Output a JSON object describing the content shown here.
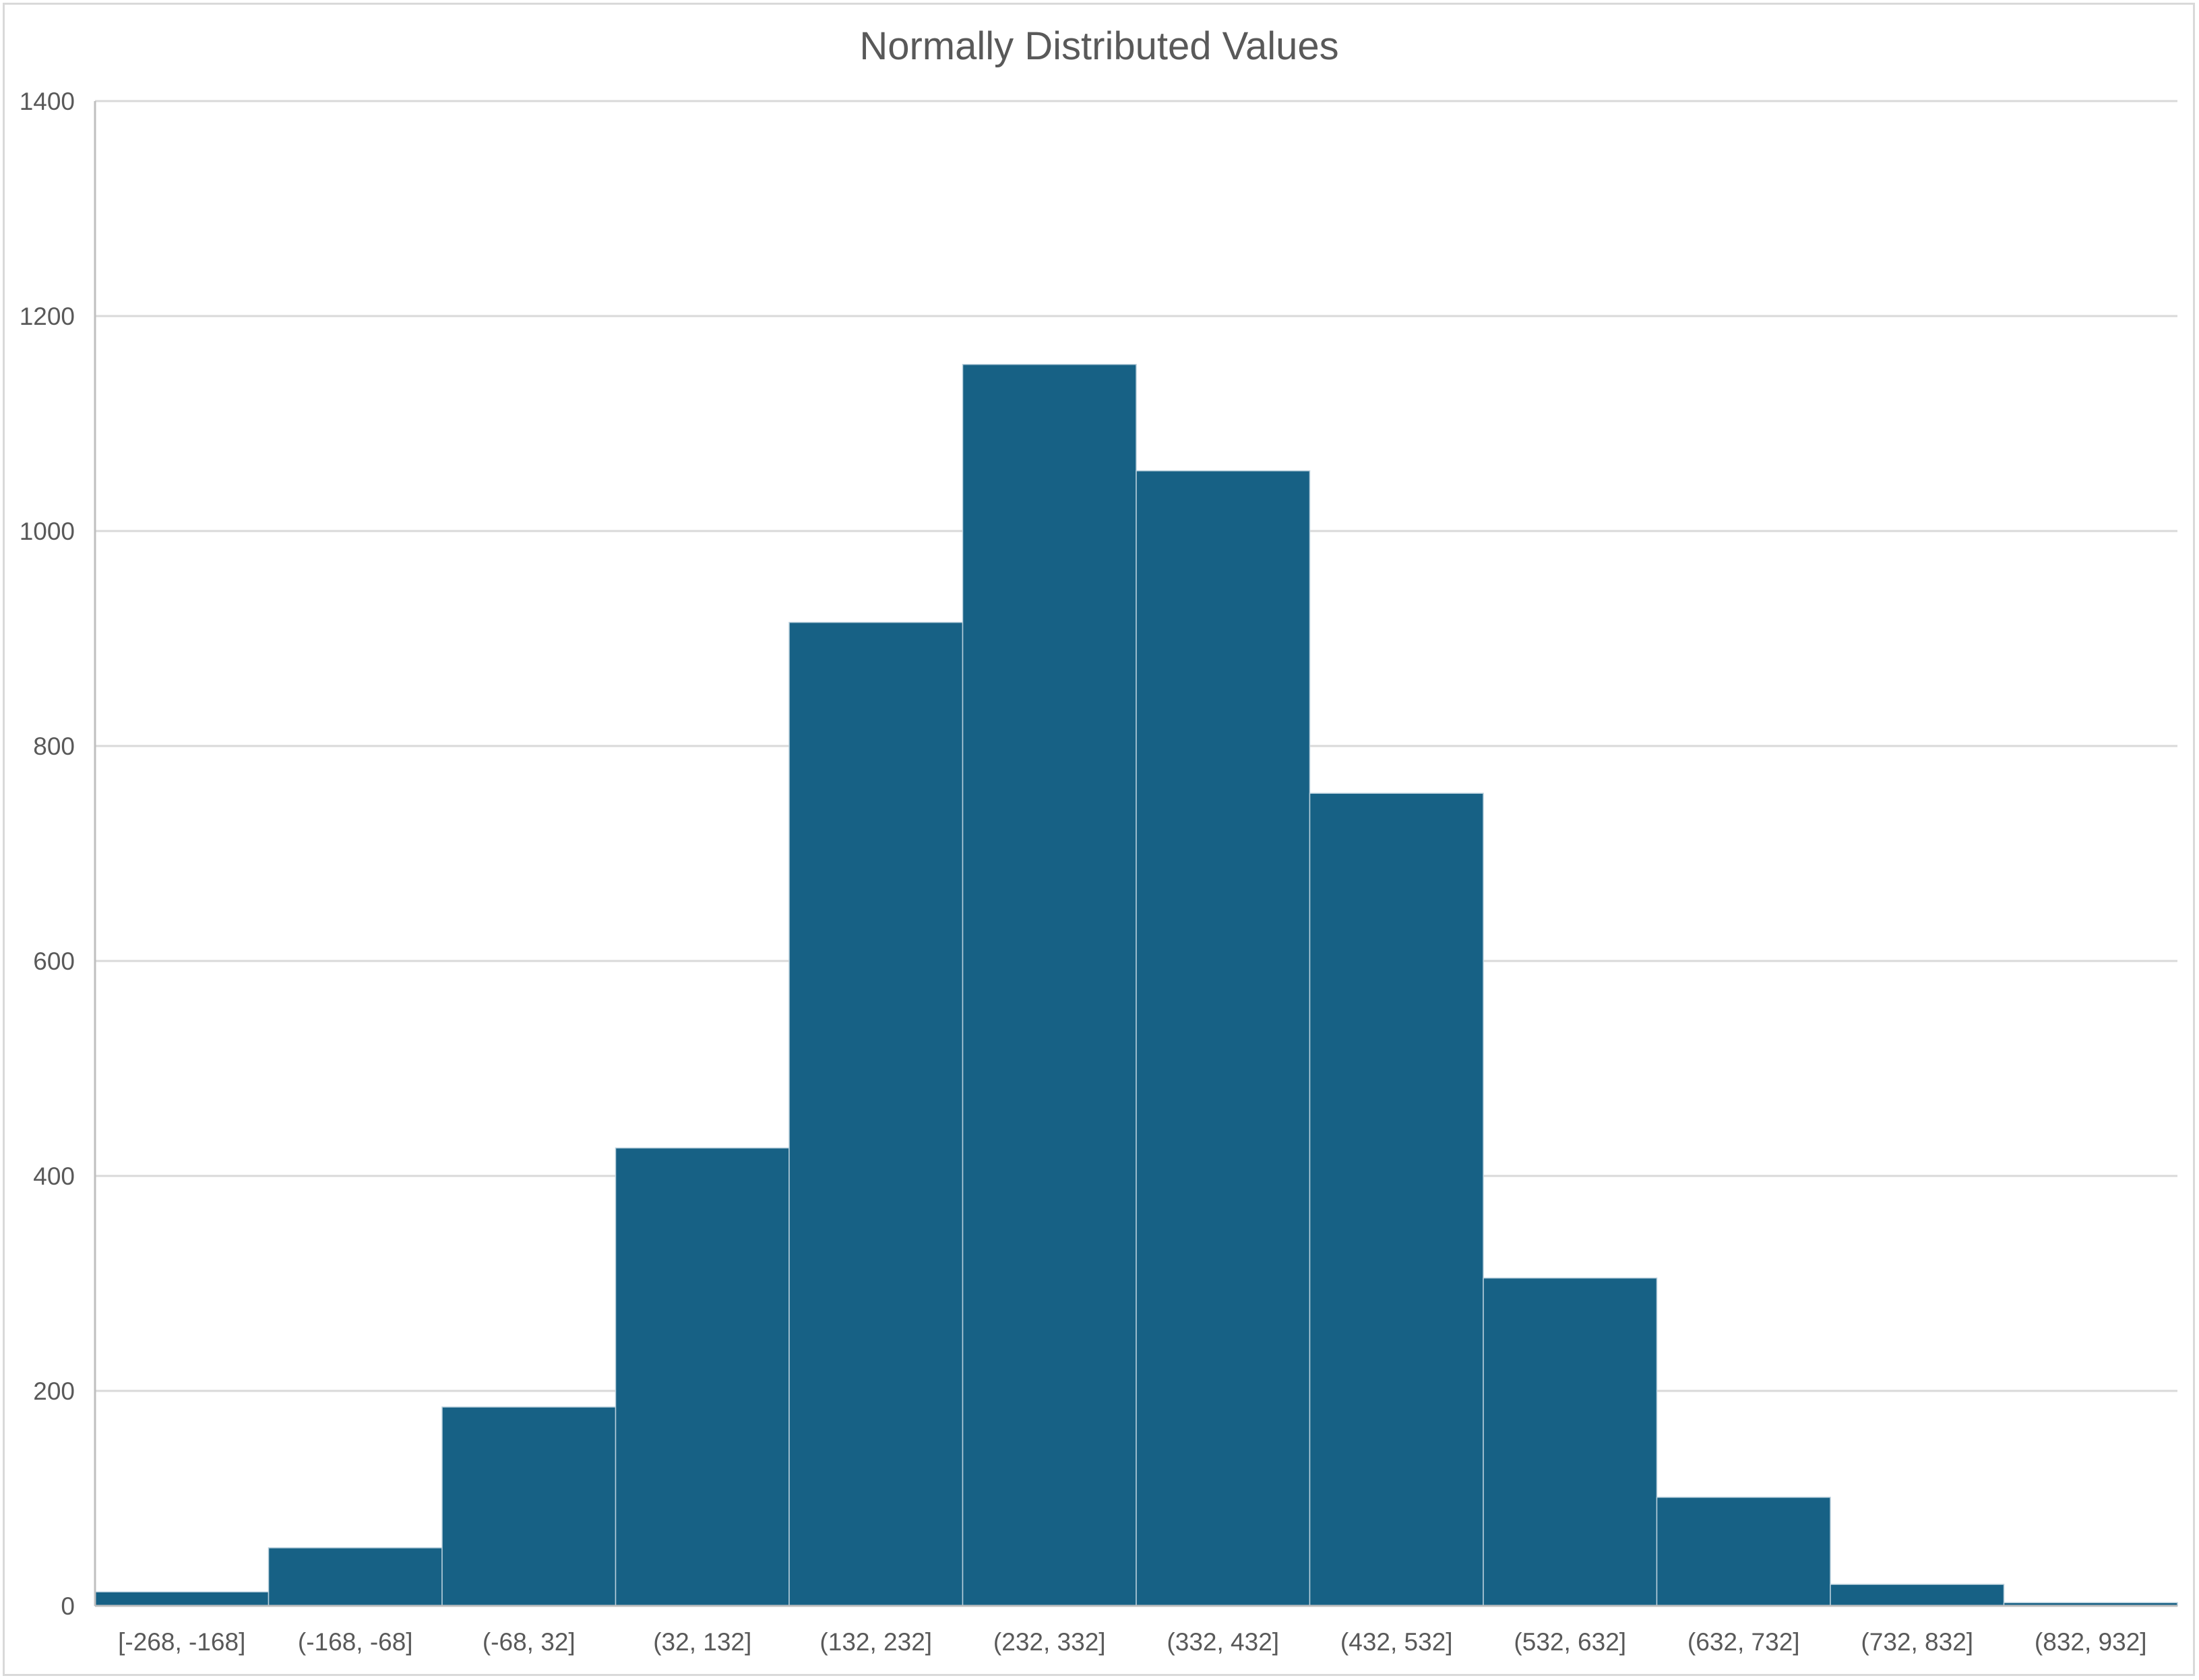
{
  "chart_data": {
    "type": "bar",
    "title": "Normally  Distributed Values",
    "xlabel": "",
    "ylabel": "",
    "categories": [
      "[-268, -168]",
      "(-168, -68]",
      "(-68, 32]",
      "(32, 132]",
      "(132, 232]",
      "(232, 332]",
      "(332, 432]",
      "(432, 532]",
      "(532, 632]",
      "(632, 732]",
      "(732, 832]",
      "(832, 932]"
    ],
    "values": [
      13,
      54,
      185,
      426,
      915,
      1155,
      1056,
      756,
      305,
      101,
      20,
      3
    ],
    "ylim": [
      0,
      1400
    ],
    "yticks": [
      0,
      200,
      400,
      600,
      800,
      1000,
      1200,
      1400
    ],
    "grid": true,
    "legend": "none",
    "colors": {
      "bar": "#176185",
      "bar_edge": "#b8cfdc",
      "grid": "#d9d9d9",
      "axis": "#bfbfbf",
      "text": "#595959"
    }
  }
}
